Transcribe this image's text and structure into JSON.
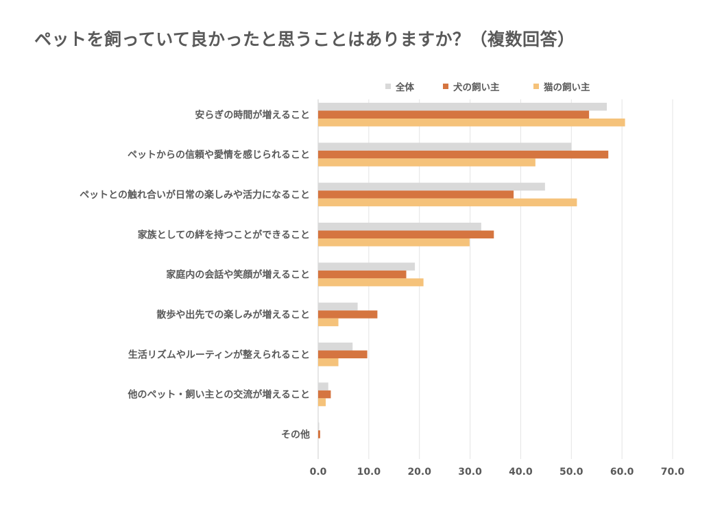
{
  "chart_data": {
    "type": "bar",
    "orientation": "horizontal",
    "title": "ペットを飼っていて良かったと思うことはありますか？（複数回答）",
    "categories": [
      "安らぎの時間が増えること",
      "ペットからの信頼や愛情を感じられること",
      "ペットとの触れ合いが日常の楽しみや活力になること",
      "家族としての絆を持つことができること",
      "家庭内の会話や笑顔が増えること",
      "散歩や出先での楽しみが増えること",
      "生活リズムやルーティンが整えられること",
      "他のペット・飼い主との交流が増えること",
      "その他"
    ],
    "series": [
      {
        "name": "全体",
        "color": "#d9d9d9",
        "values": [
          57.0,
          50.0,
          44.8,
          32.2,
          19.1,
          7.8,
          6.8,
          2.0,
          0.2
        ]
      },
      {
        "name": "犬の飼い主",
        "color": "#d57540",
        "values": [
          53.5,
          57.3,
          38.6,
          34.7,
          17.4,
          11.7,
          9.7,
          2.5,
          0.4
        ]
      },
      {
        "name": "猫の飼い主",
        "color": "#f5c27a",
        "values": [
          60.6,
          42.9,
          51.1,
          29.9,
          20.8,
          4.0,
          4.0,
          1.5,
          0.0
        ]
      }
    ],
    "xlim": [
      0,
      70
    ],
    "xticks": [
      "0.0",
      "10.0",
      "20.0",
      "30.0",
      "40.0",
      "50.0",
      "60.0",
      "70.0"
    ],
    "xlabel": "",
    "ylabel": "",
    "grid": true,
    "legend_position": "top-right"
  }
}
